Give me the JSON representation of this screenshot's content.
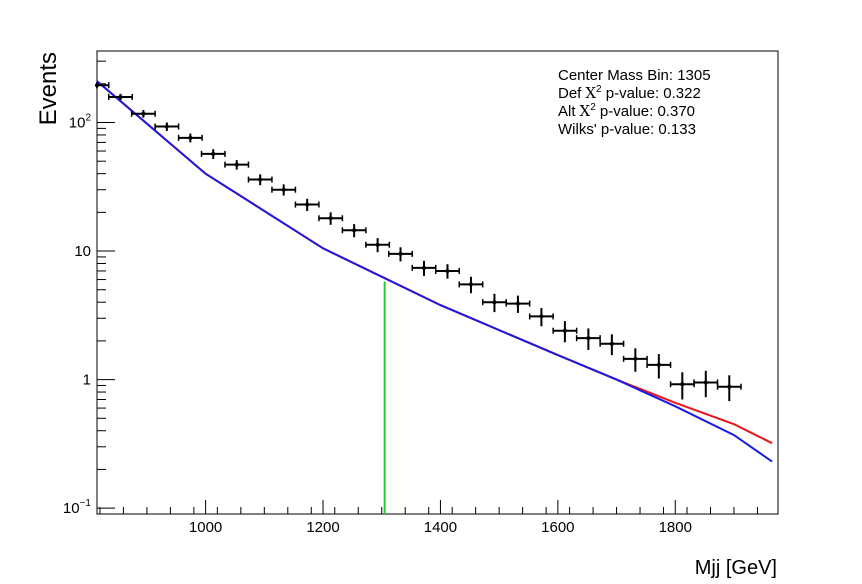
{
  "chart_data": {
    "type": "scatter",
    "title": "",
    "xlabel": "Mjj [GeV]",
    "ylabel": "Events",
    "xlim": [
      815,
      1975
    ],
    "ylim": [
      0.09,
      360
    ],
    "log_y": true,
    "grid": false,
    "x_ticks": [
      1000,
      1200,
      1400,
      1600,
      1800
    ],
    "y_ticks": [
      {
        "value": 0.1,
        "label": "10",
        "sup": "−1"
      },
      {
        "value": 1,
        "label": "1",
        "sup": ""
      },
      {
        "value": 10,
        "label": "10",
        "sup": ""
      },
      {
        "value": 100,
        "label": "10",
        "sup": "2"
      }
    ],
    "legend_placement": "top-right",
    "annotations": {
      "center": "Center Mass Bin: 1305",
      "def_pre": "Def",
      "def_post": " p-value: 0.322",
      "alt_pre": "Alt",
      "alt_post": " p-value: 0.370",
      "chi_symbol": "X",
      "chi_sup": "2",
      "wilks": "Wilks' p-value: 0.133"
    },
    "center_mass_bin": 1305,
    "center_line_color": "#22cc33",
    "series": [
      {
        "kind": "data",
        "color": "#000000",
        "points": [
          {
            "x": 815,
            "xerr": 20,
            "y": 195,
            "yerr": 10
          },
          {
            "x": 855,
            "xerr": 20,
            "y": 158,
            "yerr": 9
          },
          {
            "x": 894,
            "xerr": 20,
            "y": 117,
            "yerr": 8
          },
          {
            "x": 934,
            "xerr": 20,
            "y": 93,
            "yerr": 7
          },
          {
            "x": 974,
            "xerr": 20,
            "y": 76,
            "yerr": 6
          },
          {
            "x": 1013,
            "xerr": 20,
            "y": 57,
            "yerr": 5
          },
          {
            "x": 1053,
            "xerr": 20,
            "y": 47,
            "yerr": 4
          },
          {
            "x": 1093,
            "xerr": 20,
            "y": 36,
            "yerr": 3.5
          },
          {
            "x": 1133,
            "xerr": 20,
            "y": 30,
            "yerr": 3
          },
          {
            "x": 1173,
            "xerr": 20,
            "y": 23,
            "yerr": 2.5
          },
          {
            "x": 1213,
            "xerr": 20,
            "y": 18,
            "yerr": 2
          },
          {
            "x": 1253,
            "xerr": 20,
            "y": 14.5,
            "yerr": 1.7
          },
          {
            "x": 1293,
            "xerr": 20,
            "y": 11.2,
            "yerr": 1.4
          },
          {
            "x": 1332,
            "xerr": 20,
            "y": 9.5,
            "yerr": 1.2
          },
          {
            "x": 1372,
            "xerr": 20,
            "y": 7.4,
            "yerr": 1.0
          },
          {
            "x": 1412,
            "xerr": 20,
            "y": 7.0,
            "yerr": 0.9
          },
          {
            "x": 1452,
            "xerr": 20,
            "y": 5.5,
            "yerr": 0.8
          },
          {
            "x": 1492,
            "xerr": 20,
            "y": 4.0,
            "yerr": 0.65
          },
          {
            "x": 1532,
            "xerr": 20,
            "y": 3.9,
            "yerr": 0.6
          },
          {
            "x": 1572,
            "xerr": 20,
            "y": 3.1,
            "yerr": 0.5
          },
          {
            "x": 1612,
            "xerr": 20,
            "y": 2.4,
            "yerr": 0.45
          },
          {
            "x": 1652,
            "xerr": 20,
            "y": 2.1,
            "yerr": 0.4
          },
          {
            "x": 1692,
            "xerr": 20,
            "y": 1.9,
            "yerr": 0.35
          },
          {
            "x": 1732,
            "xerr": 20,
            "y": 1.45,
            "yerr": 0.3
          },
          {
            "x": 1772,
            "xerr": 20,
            "y": 1.3,
            "yerr": 0.28
          },
          {
            "x": 1812,
            "xerr": 20,
            "y": 0.92,
            "yerr": 0.22
          },
          {
            "x": 1852,
            "xerr": 20,
            "y": 0.95,
            "yerr": 0.22
          },
          {
            "x": 1892,
            "xerr": 20,
            "y": 0.88,
            "yerr": 0.2
          }
        ]
      }
    ],
    "fits": [
      {
        "kind": "alt-fit",
        "color": "#e8151b",
        "x": [
          815,
          1000,
          1200,
          1400,
          1600,
          1700,
          1800,
          1900,
          1965
        ],
        "y": [
          210,
          40,
          10.5,
          3.8,
          1.55,
          1.0,
          0.66,
          0.45,
          0.32
        ]
      },
      {
        "kind": "def-fit",
        "color": "#1a1ae0",
        "x": [
          815,
          1000,
          1200,
          1400,
          1600,
          1700,
          1800,
          1900,
          1965
        ],
        "y": [
          210,
          40,
          10.5,
          3.8,
          1.55,
          1.0,
          0.62,
          0.37,
          0.23
        ]
      }
    ]
  }
}
